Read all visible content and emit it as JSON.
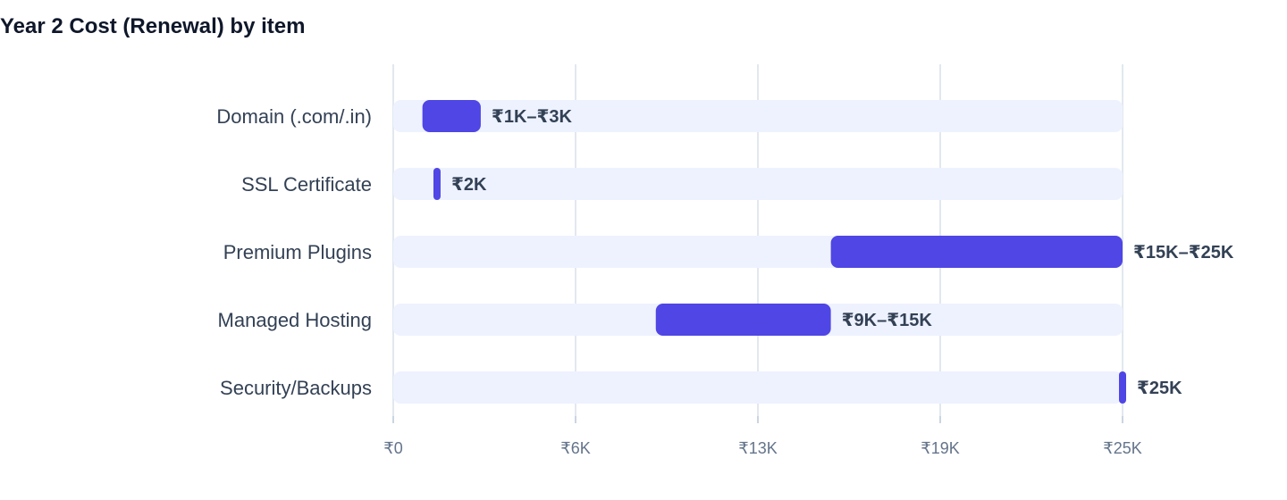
{
  "chart_data": {
    "type": "bar",
    "orientation": "horizontal-range",
    "title": "Year 2 Cost (Renewal) by item",
    "xlabel": "",
    "ylabel": "",
    "xlim": [
      0,
      25000
    ],
    "grid": true,
    "ticks": [
      {
        "value": 0,
        "label": "₹0"
      },
      {
        "value": 6250,
        "label": "₹6K"
      },
      {
        "value": 12500,
        "label": "₹13K"
      },
      {
        "value": 18750,
        "label": "₹19K"
      },
      {
        "value": 25000,
        "label": "₹25K"
      }
    ],
    "categories": [
      "Domain (.com/.in)",
      "SSL Certificate",
      "Premium Plugins",
      "Managed Hosting",
      "Security/Backups"
    ],
    "ranges": [
      {
        "low": 1000,
        "high": 3000,
        "label": "₹1K–₹3K"
      },
      {
        "low": 1500,
        "high": 1500,
        "label": "₹2K"
      },
      {
        "low": 15000,
        "high": 25000,
        "label": "₹15K–₹25K"
      },
      {
        "low": 9000,
        "high": 15000,
        "label": "₹9K–₹15K"
      },
      {
        "low": 25000,
        "high": 25000,
        "label": "₹25K"
      }
    ],
    "colors": {
      "bar": "#4f46e5",
      "track": "#eef2ff",
      "grid": "#e2e8f0"
    }
  }
}
